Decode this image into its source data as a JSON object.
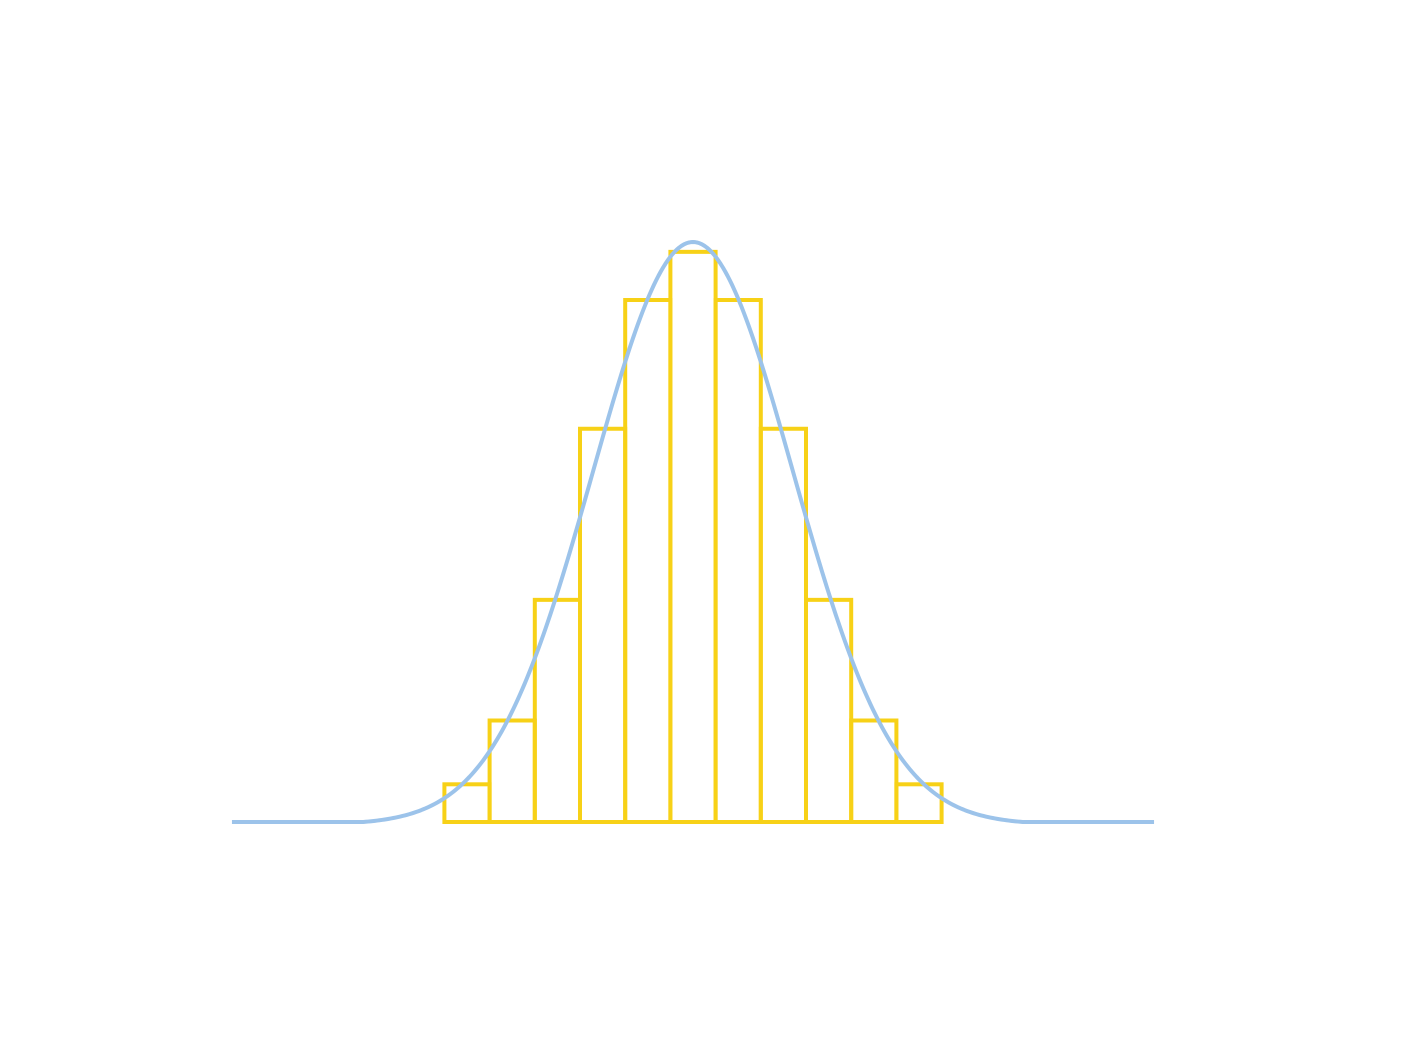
{
  "chart_data": {
    "type": "bar",
    "description_free": true,
    "title": "",
    "xlabel": "",
    "ylabel": "",
    "grid": false,
    "histogram": {
      "bin_edges": [
        -5.5,
        -4.5,
        -3.5,
        -2.5,
        -1.5,
        -0.5,
        0.5,
        1.5,
        2.5,
        3.5,
        4.5,
        5.5
      ],
      "values": [
        0.065,
        0.175,
        0.383,
        0.678,
        0.9,
        0.983,
        0.9,
        0.678,
        0.383,
        0.175,
        0.065
      ]
    },
    "curve": {
      "kind": "normal",
      "mean": 0,
      "sd": 2.21,
      "peak": 1,
      "x_range": [
        -10.2,
        10.2
      ],
      "flat_beyond": 7.3
    },
    "xlim": [
      -10.2,
      10.2
    ],
    "ylim": [
      0,
      1
    ]
  },
  "colors": {
    "curve": "#9cc3ea",
    "bars": "#f7d117",
    "background": "#ffffff"
  }
}
